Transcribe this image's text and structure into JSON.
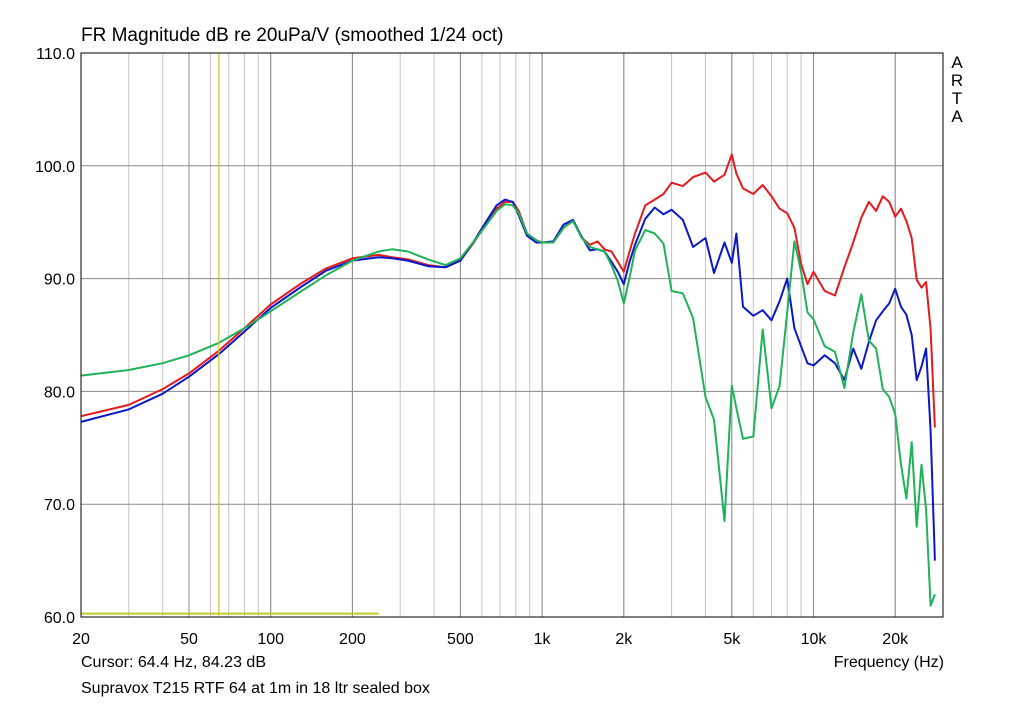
{
  "title": "FR Magnitude dB re 20uPa/V (smoothed 1/24 oct)",
  "brand_letters": [
    "A",
    "R",
    "T",
    "A"
  ],
  "cursor_text": "Cursor: 64.4 Hz, 84.23 dB",
  "caption": "Supravox T215 RTF 64 at 1m in 18 ltr sealed box",
  "colors": {
    "grid": "#999999",
    "frame": "#000000",
    "red": "#e41a1c",
    "blue": "#0a18c8",
    "green": "#1fb25a",
    "cursor": "#c8c82a"
  },
  "chart_data": {
    "type": "line",
    "xlabel": "Frequency (Hz)",
    "ylabel": "",
    "x_scale": "log",
    "xlim": [
      20,
      30000
    ],
    "ylim": [
      60,
      110
    ],
    "grid": true,
    "x_ticks": [
      {
        "v": 20,
        "label": "20"
      },
      {
        "v": 50,
        "label": "50"
      },
      {
        "v": 100,
        "label": "100"
      },
      {
        "v": 200,
        "label": "200"
      },
      {
        "v": 500,
        "label": "500"
      },
      {
        "v": 1000,
        "label": "1k"
      },
      {
        "v": 2000,
        "label": "2k"
      },
      {
        "v": 5000,
        "label": "5k"
      },
      {
        "v": 10000,
        "label": "10k"
      },
      {
        "v": 20000,
        "label": "20k"
      }
    ],
    "y_ticks": [
      {
        "v": 110,
        "label": "110.0"
      },
      {
        "v": 100,
        "label": "100.0"
      },
      {
        "v": 90,
        "label": "90.0"
      },
      {
        "v": 80,
        "label": "80.0"
      },
      {
        "v": 70,
        "label": "70.0"
      },
      {
        "v": 60,
        "label": "60.0"
      }
    ],
    "cursor": {
      "freq": 64.4,
      "level": 84.23
    },
    "reference_line": {
      "level": 60.3,
      "x_from": 20,
      "x_to": 250
    },
    "series": [
      {
        "color_key": "red",
        "x": [
          20,
          30,
          40,
          50,
          64.4,
          80,
          100,
          130,
          160,
          200,
          250,
          280,
          320,
          380,
          440,
          500,
          560,
          620,
          680,
          730,
          780,
          820,
          880,
          950,
          1000,
          1100,
          1200,
          1300,
          1400,
          1500,
          1600,
          1700,
          1800,
          1900,
          2000,
          2100,
          2200,
          2400,
          2600,
          2800,
          3000,
          3300,
          3600,
          4000,
          4300,
          4700,
          5000,
          5200,
          5500,
          6000,
          6500,
          7000,
          7500,
          8000,
          8500,
          9000,
          9500,
          10000,
          11000,
          12000,
          13000,
          14000,
          15000,
          16000,
          17000,
          18000,
          19000,
          20000,
          21000,
          22000,
          23000,
          24000,
          25000,
          26000,
          27000,
          28000
        ],
        "y": [
          77.8,
          78.8,
          80.2,
          81.6,
          83.6,
          85.6,
          87.7,
          89.6,
          90.9,
          91.8,
          92.1,
          91.9,
          91.7,
          91.2,
          91.0,
          91.6,
          93.2,
          94.8,
          96.2,
          96.8,
          96.8,
          96.0,
          94.0,
          93.4,
          93.2,
          93.2,
          94.5,
          95.2,
          93.6,
          93.0,
          93.3,
          92.6,
          92.4,
          91.5,
          90.6,
          92.4,
          94.0,
          96.5,
          97.0,
          97.5,
          98.5,
          98.2,
          99.0,
          99.4,
          98.6,
          99.2,
          101.0,
          99.3,
          98.0,
          97.5,
          98.3,
          97.3,
          96.2,
          95.8,
          94.5,
          91.3,
          89.5,
          90.6,
          88.9,
          88.5,
          91.0,
          93.2,
          95.4,
          96.8,
          96.0,
          97.3,
          96.8,
          95.5,
          96.2,
          95.1,
          93.6,
          89.9,
          89.2,
          89.7,
          85.5,
          76.8
        ]
      },
      {
        "color_key": "blue",
        "x": [
          20,
          30,
          40,
          50,
          64.4,
          80,
          100,
          130,
          160,
          200,
          250,
          280,
          320,
          380,
          440,
          500,
          560,
          620,
          680,
          730,
          780,
          820,
          880,
          950,
          1000,
          1100,
          1200,
          1300,
          1400,
          1500,
          1600,
          1700,
          1800,
          1900,
          2000,
          2100,
          2200,
          2400,
          2600,
          2800,
          3000,
          3300,
          3600,
          4000,
          4300,
          4700,
          5000,
          5200,
          5500,
          6000,
          6500,
          7000,
          7500,
          8000,
          8500,
          9000,
          9500,
          10000,
          11000,
          12000,
          13000,
          14000,
          15000,
          16000,
          17000,
          18000,
          19000,
          20000,
          21000,
          22000,
          23000,
          24000,
          25000,
          26000,
          27000,
          28000
        ],
        "y": [
          77.3,
          78.4,
          79.8,
          81.3,
          83.3,
          85.3,
          87.4,
          89.3,
          90.7,
          91.6,
          91.9,
          91.8,
          91.6,
          91.1,
          91.0,
          91.6,
          93.3,
          95.0,
          96.5,
          97.0,
          96.8,
          95.6,
          93.8,
          93.2,
          93.2,
          93.3,
          94.8,
          95.2,
          93.7,
          92.5,
          92.6,
          92.4,
          91.5,
          90.6,
          89.5,
          91.5,
          93.0,
          95.3,
          96.3,
          95.7,
          96.1,
          95.2,
          92.8,
          93.6,
          90.5,
          93.2,
          91.4,
          94.0,
          87.5,
          86.7,
          87.2,
          86.3,
          88.0,
          90.0,
          85.6,
          84.0,
          82.5,
          82.3,
          83.2,
          82.5,
          81.0,
          83.8,
          82.0,
          84.4,
          86.3,
          87.1,
          87.8,
          89.1,
          87.5,
          86.8,
          85.0,
          81.0,
          82.2,
          83.8,
          76.5,
          65.0
        ]
      },
      {
        "color_key": "green",
        "x": [
          20,
          30,
          40,
          50,
          64.4,
          80,
          100,
          130,
          160,
          200,
          250,
          280,
          320,
          380,
          440,
          500,
          560,
          620,
          680,
          730,
          780,
          820,
          880,
          950,
          1000,
          1100,
          1200,
          1300,
          1400,
          1500,
          1600,
          1700,
          1800,
          1900,
          2000,
          2100,
          2200,
          2400,
          2600,
          2800,
          3000,
          3300,
          3600,
          4000,
          4300,
          4700,
          5000,
          5200,
          5500,
          6000,
          6500,
          7000,
          7500,
          8000,
          8500,
          9000,
          9500,
          10000,
          11000,
          12000,
          13000,
          14000,
          15000,
          16000,
          17000,
          18000,
          19000,
          20000,
          21000,
          22000,
          23000,
          24000,
          25000,
          26000,
          27000,
          28000
        ],
        "y": [
          81.4,
          81.9,
          82.5,
          83.2,
          84.3,
          85.6,
          87.1,
          88.9,
          90.3,
          91.6,
          92.4,
          92.6,
          92.4,
          91.7,
          91.2,
          91.8,
          93.3,
          94.7,
          96.0,
          96.6,
          96.5,
          95.8,
          94.0,
          93.4,
          93.2,
          93.2,
          94.5,
          95.1,
          93.6,
          92.8,
          92.6,
          92.4,
          91.2,
          89.8,
          87.8,
          90.1,
          92.5,
          94.3,
          94.0,
          93.1,
          88.9,
          88.7,
          86.5,
          79.5,
          77.5,
          68.5,
          80.5,
          78.5,
          75.8,
          76.0,
          85.5,
          78.5,
          80.5,
          87.0,
          93.3,
          90.6,
          87.0,
          86.4,
          84.0,
          83.5,
          80.3,
          85.2,
          88.6,
          84.5,
          83.8,
          80.2,
          79.5,
          78.0,
          73.5,
          70.5,
          75.5,
          68.0,
          73.5,
          69.5,
          61.0,
          62.0
        ]
      }
    ]
  }
}
